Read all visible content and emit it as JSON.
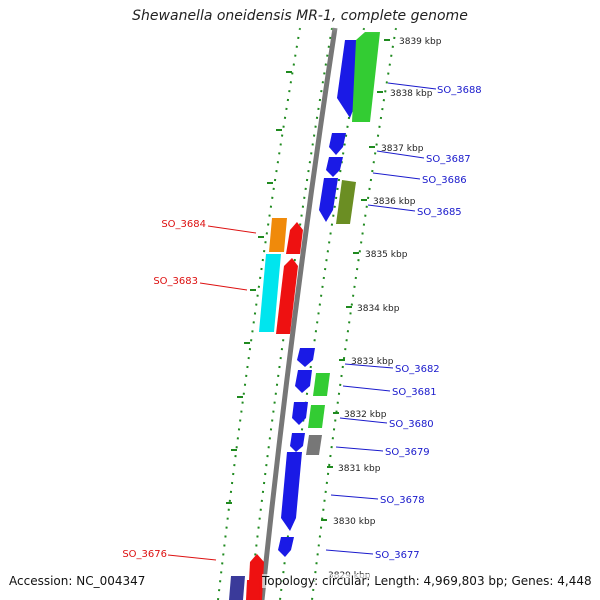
{
  "title": "Shewanella oneidensis MR-1, complete genome",
  "footer": {
    "accession": "Accession: NC_004347",
    "topology": "Topology: circular; Length: 4,969,803 bp; Genes: 4,448"
  },
  "colors": {
    "blue": "#1a1ae6",
    "green": "#33cc33",
    "olive": "#6b8e23",
    "gray": "#777777",
    "orange": "#f08a0a",
    "cyan": "#00e5ee",
    "red": "#ee1111",
    "navy": "#3a3a9a",
    "tick": "#1f8a1f",
    "label_blue": "#1a1acc",
    "label_red": "#dd1111"
  },
  "scale_labels": [
    "3839 kbp",
    "3838 kbp",
    "3837 kbp",
    "3836 kbp",
    "3835 kbp",
    "3834 kbp",
    "3833 kbp",
    "3832 kbp",
    "3831 kbp",
    "3830 kbp",
    "3829 kbp"
  ],
  "gene_labels_right": [
    "SO_3688",
    "SO_3687",
    "SO_3686",
    "SO_3685",
    "SO_3682",
    "SO_3681",
    "SO_3680",
    "SO_3679",
    "SO_3678",
    "SO_3677"
  ],
  "gene_labels_left": [
    "SO_3684",
    "SO_3683",
    "SO_3676"
  ]
}
